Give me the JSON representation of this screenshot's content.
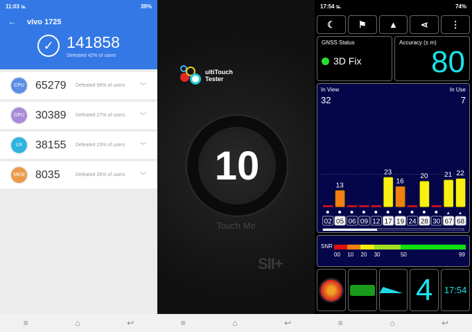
{
  "antutu": {
    "status": {
      "time": "11:03 น.",
      "battery": "39%"
    },
    "device": "vivo 1725",
    "total": "141858",
    "total_defeated": "Defeated 42% of users",
    "rows": [
      {
        "label": "CPU",
        "score": "65279",
        "defeated": "Defeated 98% of users",
        "color": "#5b8fe6"
      },
      {
        "label": "GPU",
        "score": "30389",
        "defeated": "Defeated 27% of users",
        "color": "#a88ad8"
      },
      {
        "label": "UX",
        "score": "38155",
        "defeated": "Defeated 23% of users",
        "color": "#2eb4e0"
      },
      {
        "label": "MEM",
        "score": "8035",
        "defeated": "Defeated 26% of users",
        "color": "#eb9a4a"
      }
    ]
  },
  "multitouch": {
    "logo_line1": "ultiTouch",
    "logo_line2": "Tester",
    "count": "10",
    "touch_label": "Touch Me",
    "watermark": "SII+"
  },
  "gps": {
    "status": {
      "time": "17:54 น.",
      "battery": "74%"
    },
    "gnss_label": "GNSS Status",
    "fix": "3D Fix",
    "accuracy_label": "Accuracy (± m)",
    "accuracy": "80",
    "in_view_label": "In View",
    "in_view": "32",
    "in_use_label": "In Use",
    "in_use": "7",
    "satellites": [
      {
        "id": "02",
        "snr": 0,
        "used": false
      },
      {
        "id": "05",
        "snr": 13,
        "used": true
      },
      {
        "id": "06",
        "snr": 0,
        "used": false
      },
      {
        "id": "09",
        "snr": 0,
        "used": false
      },
      {
        "id": "12",
        "snr": 0,
        "used": false
      },
      {
        "id": "17",
        "snr": 23,
        "used": true
      },
      {
        "id": "19",
        "snr": 16,
        "used": true
      },
      {
        "id": "24",
        "snr": 0,
        "used": false
      },
      {
        "id": "28",
        "snr": 20,
        "used": true
      },
      {
        "id": "30",
        "snr": 0,
        "used": false
      },
      {
        "id": "67",
        "snr": 21,
        "used": true
      },
      {
        "id": "68",
        "snr": 22,
        "used": true
      }
    ],
    "snr_label": "SNR",
    "snr_ticks": [
      "00",
      "10",
      "20",
      "30",
      "50",
      "99"
    ],
    "clock": "17:54",
    "tile_count": "4"
  }
}
